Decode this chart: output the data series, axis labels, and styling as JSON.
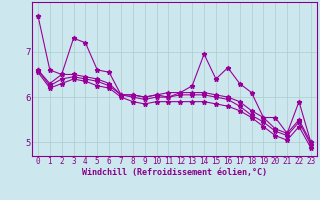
{
  "xlabel": "Windchill (Refroidissement éolien,°C)",
  "bg_color": "#cce8ee",
  "grid_color": "#aacccc",
  "line_color": "#990099",
  "x_values": [
    0,
    1,
    2,
    3,
    4,
    5,
    6,
    7,
    8,
    9,
    10,
    11,
    12,
    13,
    14,
    15,
    16,
    17,
    18,
    19,
    20,
    21,
    22,
    23
  ],
  "series": [
    [
      7.8,
      6.6,
      6.5,
      7.3,
      7.2,
      6.6,
      6.55,
      6.05,
      6.05,
      6.0,
      6.05,
      6.0,
      6.1,
      6.25,
      6.95,
      6.4,
      6.65,
      6.3,
      6.1,
      5.55,
      5.55,
      5.2,
      5.9,
      5.0
    ],
    [
      6.6,
      6.3,
      6.5,
      6.5,
      6.45,
      6.4,
      6.3,
      6.05,
      6.05,
      6.0,
      6.05,
      6.1,
      6.1,
      6.1,
      6.1,
      6.05,
      6.0,
      5.9,
      5.7,
      5.55,
      5.3,
      5.2,
      5.5,
      5.0
    ],
    [
      6.6,
      6.25,
      6.4,
      6.45,
      6.4,
      6.35,
      6.25,
      6.05,
      6.0,
      5.95,
      6.0,
      6.0,
      6.05,
      6.05,
      6.05,
      6.0,
      5.95,
      5.8,
      5.6,
      5.45,
      5.25,
      5.15,
      5.45,
      4.95
    ],
    [
      6.55,
      6.2,
      6.3,
      6.4,
      6.35,
      6.25,
      6.2,
      6.0,
      5.9,
      5.85,
      5.9,
      5.9,
      5.9,
      5.9,
      5.9,
      5.85,
      5.8,
      5.7,
      5.55,
      5.35,
      5.15,
      5.05,
      5.35,
      4.88
    ]
  ],
  "ylim": [
    4.7,
    8.1
  ],
  "yticks": [
    5,
    6,
    7
  ],
  "xticks": [
    0,
    1,
    2,
    3,
    4,
    5,
    6,
    7,
    8,
    9,
    10,
    11,
    12,
    13,
    14,
    15,
    16,
    17,
    18,
    19,
    20,
    21,
    22,
    23
  ],
  "marker": "*",
  "markersize": 3.5,
  "linewidth": 0.8,
  "font_color": "#880088",
  "tick_fontsize": 5.5,
  "label_fontsize": 6.0
}
